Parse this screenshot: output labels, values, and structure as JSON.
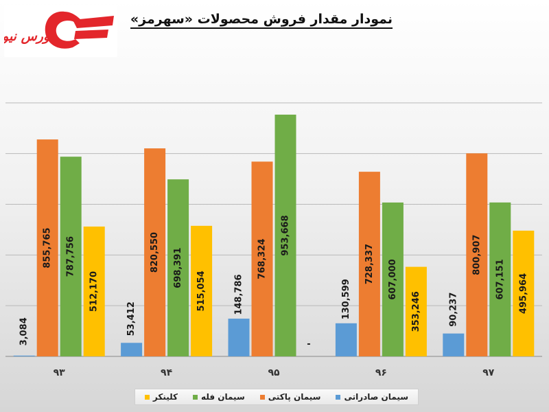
{
  "header": {
    "title": "نمودار مقدار فروش محصولات «سهرمز»",
    "logo_text": "بورس نیوز"
  },
  "colors": {
    "grid": "#b9b9b9",
    "axis": "#9a9a9a",
    "label": "#1a1a1a",
    "logo_red": "#e3262b"
  },
  "chart_data": {
    "type": "bar",
    "title": "نمودار مقدار فروش محصولات «سهرمز»",
    "categories": [
      "۹۳",
      "۹۴",
      "۹۵",
      "۹۶",
      "۹۷"
    ],
    "ylim": [
      0,
      1200000
    ],
    "grid": true,
    "legend_position": "bottom",
    "series": [
      {
        "name": "سیمان صادراتی",
        "color": "#5b9bd5",
        "values": [
          3084,
          53412,
          148786,
          130599,
          90237
        ],
        "labels": [
          "3,084",
          "53,412",
          "148,786",
          "130,599",
          "90,237"
        ]
      },
      {
        "name": "سیمان پاکتی",
        "color": "#ed7d31",
        "values": [
          855765,
          820550,
          768324,
          728337,
          800907
        ],
        "labels": [
          "855,765",
          "820,550",
          "768,324",
          "728,337",
          "800,907"
        ]
      },
      {
        "name": "سیمان فله",
        "color": "#70ad47",
        "values": [
          787756,
          698391,
          953668,
          607000,
          607151
        ],
        "labels": [
          "787,756",
          "698,391",
          "953,668",
          "607,000",
          "607,151"
        ]
      },
      {
        "name": "کلینکر",
        "color": "#ffc000",
        "values": [
          512170,
          515054,
          0,
          353246,
          495964
        ],
        "labels": [
          "512,170",
          "515,054",
          "-",
          "353,246",
          "495,964"
        ]
      }
    ]
  }
}
